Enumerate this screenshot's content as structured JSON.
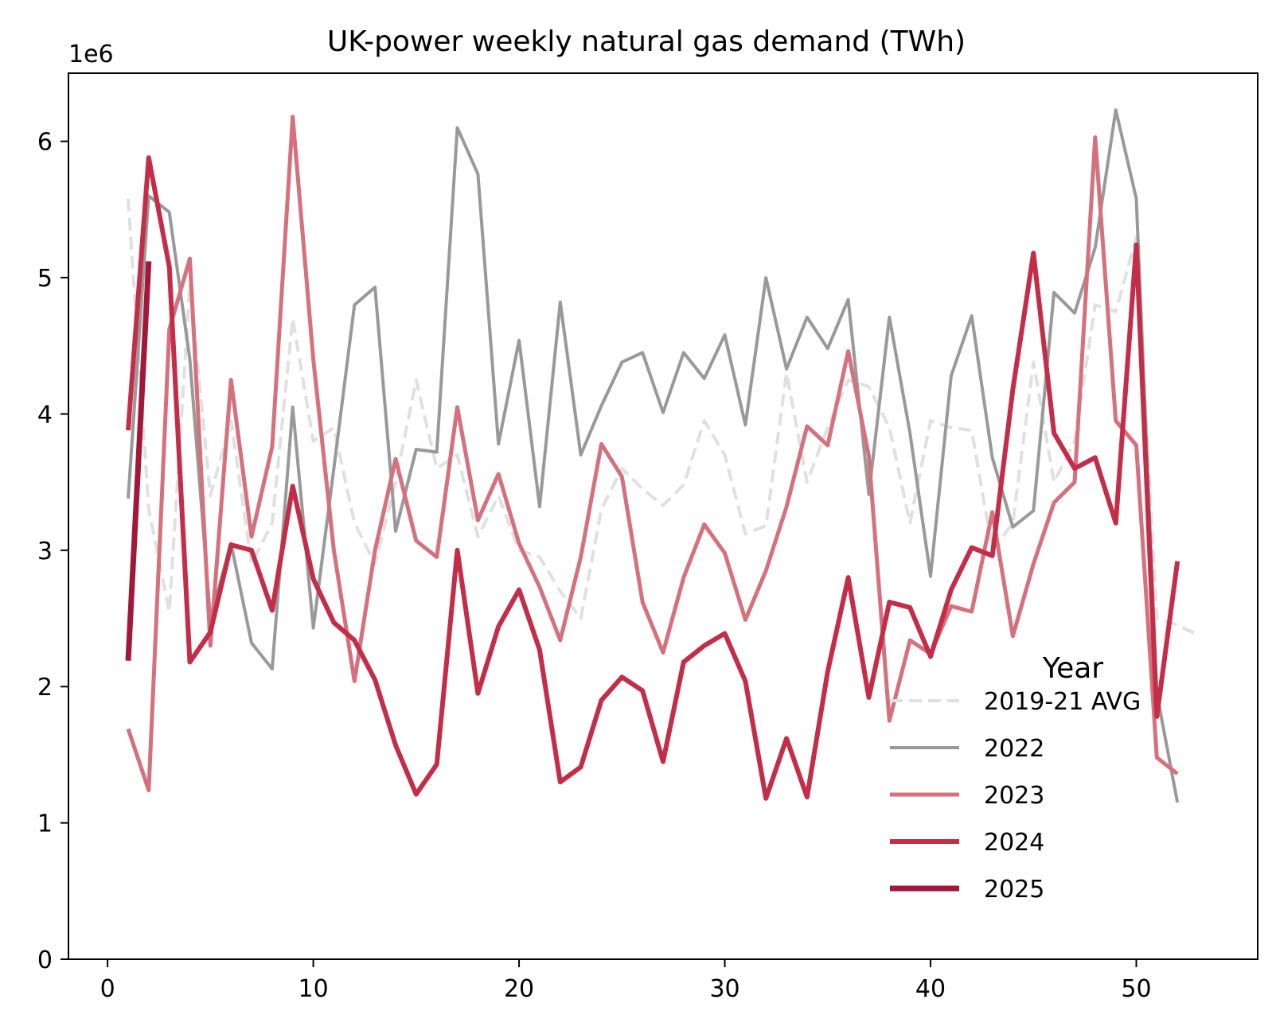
{
  "chart_data": {
    "type": "line",
    "title": "UK-power weekly natural gas demand (TWh)",
    "xlabel": "",
    "ylabel": "",
    "y_offset_label": "1e6",
    "xlim": [
      -1.9,
      55.9
    ],
    "ylim": [
      0,
      6.5
    ],
    "x_ticks": [
      0,
      10,
      20,
      30,
      40,
      50
    ],
    "y_ticks": [
      0,
      1,
      2,
      3,
      4,
      5,
      6
    ],
    "grid": false,
    "legend": {
      "title": "Year",
      "placement": "lower-right"
    },
    "series": [
      {
        "name": "2019-21 AVG",
        "color": "#e0e0e0",
        "dash": true,
        "x": [
          1,
          2,
          3,
          4,
          5,
          6,
          7,
          8,
          9,
          10,
          11,
          12,
          13,
          14,
          15,
          16,
          17,
          18,
          19,
          20,
          21,
          22,
          23,
          24,
          25,
          26,
          27,
          28,
          29,
          30,
          31,
          32,
          33,
          34,
          35,
          36,
          37,
          38,
          39,
          40,
          41,
          42,
          43,
          44,
          45,
          46,
          47,
          48,
          49,
          50,
          51,
          52,
          53
        ],
        "values": [
          5.58,
          3.3,
          2.55,
          4.95,
          3.4,
          3.95,
          2.9,
          3.2,
          4.7,
          3.8,
          3.9,
          3.2,
          2.9,
          3.5,
          4.25,
          3.6,
          3.7,
          3.1,
          3.4,
          3.0,
          2.95,
          2.7,
          2.5,
          3.3,
          3.6,
          3.45,
          3.33,
          3.48,
          3.95,
          3.7,
          3.12,
          3.18,
          4.3,
          3.5,
          3.9,
          4.25,
          4.2,
          3.9,
          3.2,
          3.95,
          3.9,
          3.88,
          3.0,
          3.2,
          4.38,
          3.5,
          3.8,
          4.8,
          4.75,
          5.3,
          2.5,
          2.45,
          2.38
        ]
      },
      {
        "name": "2022",
        "color": "#999999",
        "dash": false,
        "x": [
          1,
          2,
          3,
          4,
          5,
          6,
          7,
          8,
          9,
          10,
          11,
          12,
          13,
          14,
          15,
          16,
          17,
          18,
          19,
          20,
          21,
          22,
          23,
          24,
          25,
          26,
          27,
          28,
          29,
          30,
          31,
          32,
          33,
          34,
          35,
          36,
          37,
          38,
          39,
          40,
          41,
          42,
          43,
          44,
          45,
          46,
          47,
          48,
          49,
          50,
          51,
          52
        ],
        "values": [
          3.38,
          5.6,
          5.48,
          4.4,
          2.5,
          3.05,
          2.32,
          2.13,
          4.05,
          2.43,
          3.6,
          4.8,
          4.93,
          3.14,
          3.74,
          3.72,
          6.1,
          5.76,
          3.78,
          4.54,
          3.32,
          4.82,
          3.7,
          4.06,
          4.38,
          4.45,
          4.01,
          4.45,
          4.26,
          4.58,
          3.92,
          5.0,
          4.33,
          4.71,
          4.48,
          4.84,
          3.41,
          4.71,
          3.86,
          2.81,
          4.28,
          4.72,
          3.68,
          3.17,
          3.29,
          4.89,
          4.74,
          5.22,
          6.23,
          5.58,
          1.95,
          1.15
        ]
      },
      {
        "name": "2023",
        "color": "#d5707c",
        "dash": false,
        "x": [
          1,
          2,
          3,
          4,
          5,
          6,
          7,
          8,
          9,
          10,
          11,
          12,
          13,
          14,
          15,
          16,
          17,
          18,
          19,
          20,
          21,
          22,
          23,
          24,
          25,
          26,
          27,
          28,
          29,
          30,
          31,
          32,
          33,
          34,
          35,
          36,
          37,
          38,
          39,
          40,
          41,
          42,
          43,
          44,
          45,
          46,
          47,
          48,
          49,
          50,
          51,
          52
        ],
        "values": [
          1.69,
          1.24,
          4.62,
          5.14,
          2.3,
          4.25,
          3.1,
          3.76,
          6.18,
          4.4,
          3.0,
          2.04,
          3.0,
          3.67,
          3.07,
          2.95,
          4.05,
          3.22,
          3.56,
          3.05,
          2.73,
          2.34,
          2.95,
          3.78,
          3.54,
          2.62,
          2.25,
          2.8,
          3.19,
          2.98,
          2.49,
          2.85,
          3.32,
          3.91,
          3.77,
          4.46,
          3.69,
          1.75,
          2.34,
          2.24,
          2.59,
          2.55,
          3.28,
          2.37,
          2.9,
          3.35,
          3.5,
          6.03,
          3.95,
          3.77,
          1.48,
          1.36
        ]
      },
      {
        "name": "2024",
        "color": "#c42d48",
        "dash": false,
        "x": [
          1,
          2,
          3,
          4,
          5,
          6,
          7,
          8,
          9,
          10,
          11,
          12,
          13,
          14,
          15,
          16,
          17,
          18,
          19,
          20,
          21,
          22,
          23,
          24,
          25,
          26,
          27,
          28,
          29,
          30,
          31,
          32,
          33,
          34,
          35,
          36,
          37,
          38,
          39,
          40,
          41,
          42,
          43,
          44,
          45,
          46,
          47,
          48,
          49,
          50,
          51,
          52
        ],
        "values": [
          3.88,
          5.88,
          5.08,
          2.18,
          2.4,
          3.04,
          3.0,
          2.56,
          3.47,
          2.79,
          2.47,
          2.34,
          2.05,
          1.57,
          1.21,
          1.43,
          3.0,
          1.95,
          2.44,
          2.71,
          2.27,
          1.3,
          1.41,
          1.9,
          2.07,
          1.97,
          1.45,
          2.18,
          2.3,
          2.39,
          2.04,
          1.18,
          1.62,
          1.19,
          2.11,
          2.8,
          1.92,
          2.62,
          2.58,
          2.22,
          2.71,
          3.02,
          2.96,
          4.18,
          5.18,
          3.86,
          3.6,
          3.68,
          3.2,
          5.24,
          1.78,
          2.92
        ]
      },
      {
        "name": "2025",
        "color": "#a3183a",
        "dash": false,
        "x": [
          1,
          2
        ],
        "values": [
          2.19,
          5.12
        ]
      }
    ]
  }
}
